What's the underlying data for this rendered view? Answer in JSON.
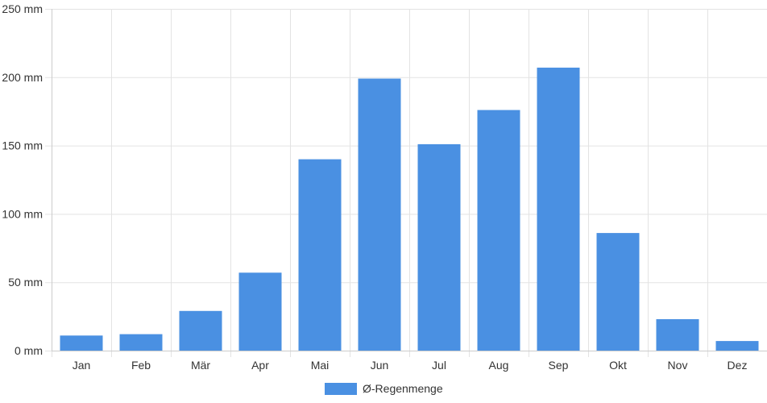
{
  "chart_data": {
    "type": "bar",
    "categories": [
      "Jan",
      "Feb",
      "Mär",
      "Apr",
      "Mai",
      "Jun",
      "Jul",
      "Aug",
      "Sep",
      "Okt",
      "Nov",
      "Dez"
    ],
    "series": [
      {
        "name": "Ø-Regenmenge",
        "values": [
          11,
          12,
          29,
          57,
          140,
          199,
          151,
          176,
          207,
          86,
          23,
          7
        ],
        "color": "#4a90e2"
      }
    ],
    "ylim": [
      0,
      250
    ],
    "yticks": [
      0,
      50,
      100,
      150,
      200,
      250
    ],
    "y_unit": "mm",
    "grid": true,
    "legend_position": "bottom"
  }
}
